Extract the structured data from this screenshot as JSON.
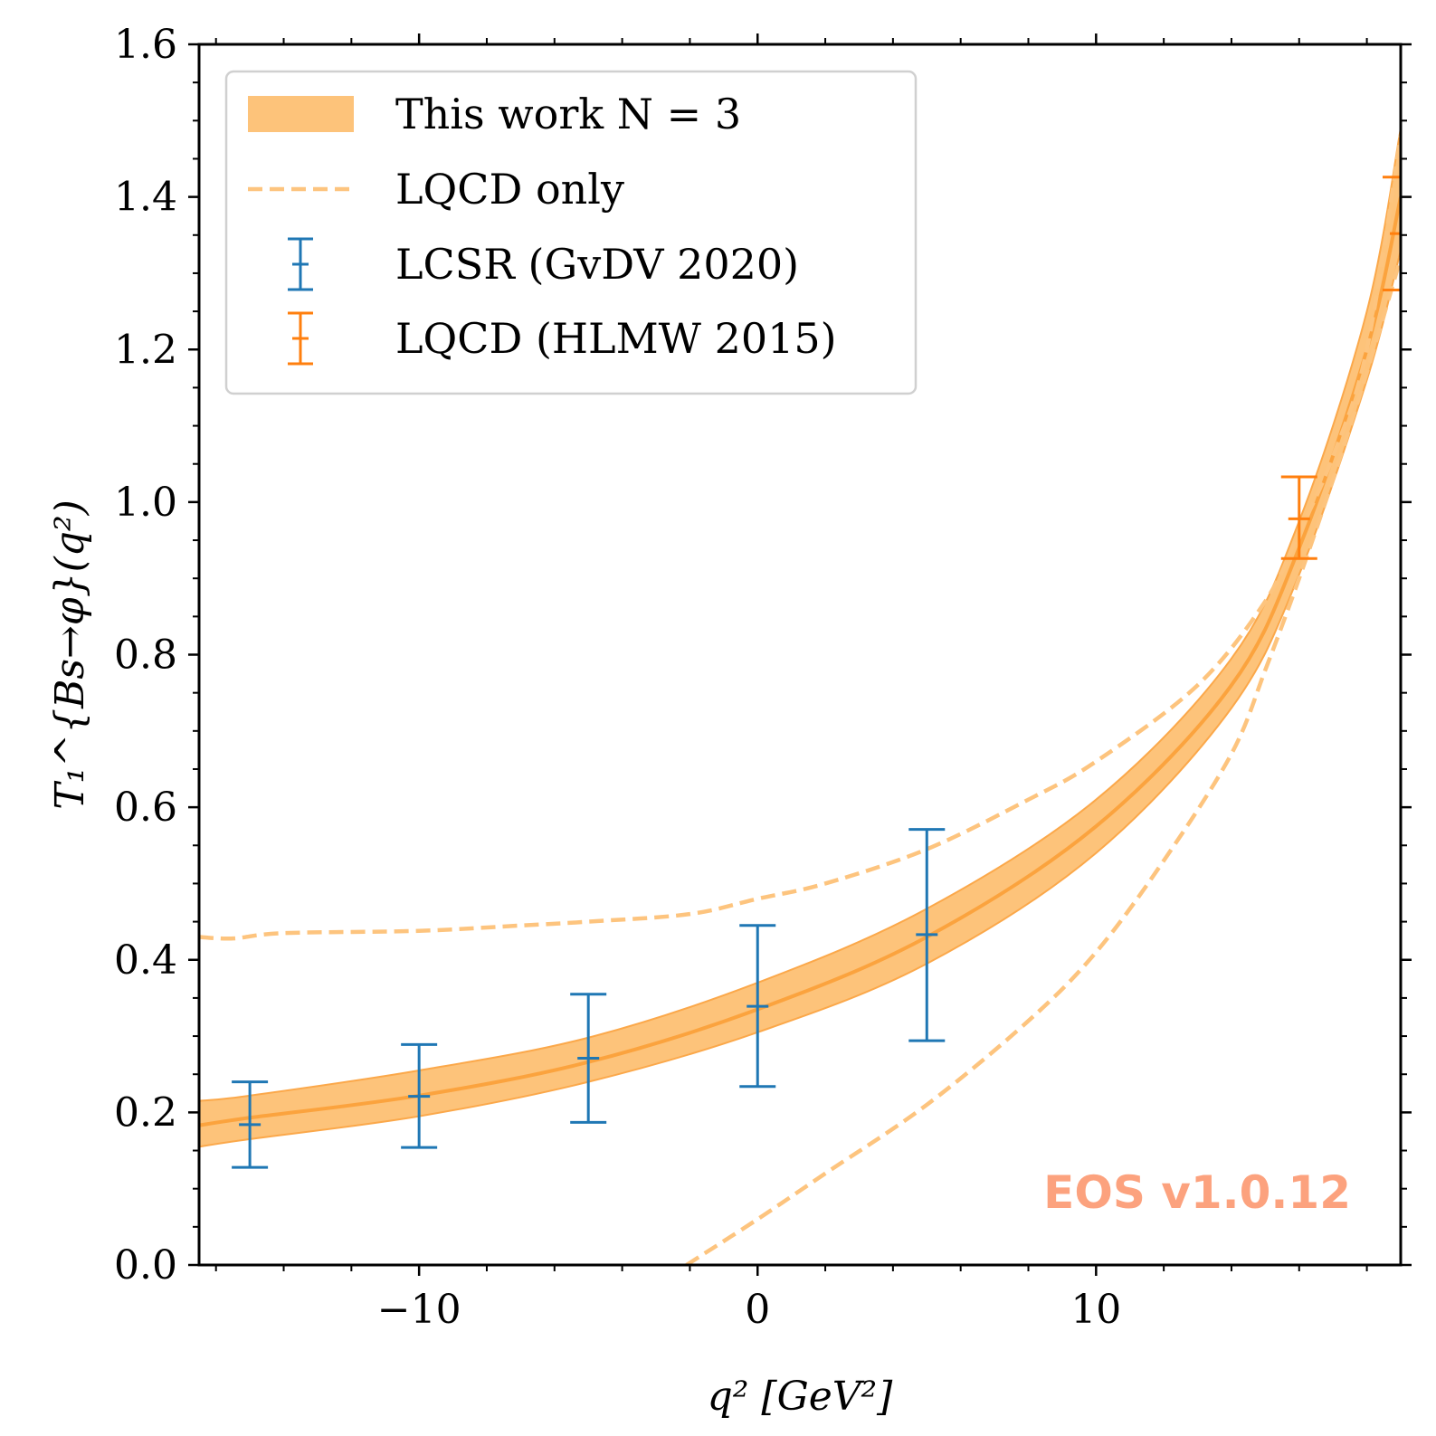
{
  "chart_data": {
    "type": "line",
    "xlabel": "q² [GeV²]",
    "ylabel": "T₁^{Bs→φ}(q²)",
    "xlim": [
      -16.5,
      19.0
    ],
    "ylim": [
      0.0,
      1.6
    ],
    "xticks": [
      -10,
      0,
      10
    ],
    "xtick_labels": [
      "−10",
      "0",
      "10"
    ],
    "yticks": [
      0.0,
      0.2,
      0.4,
      0.6,
      0.8,
      1.0,
      1.2,
      1.4,
      1.6
    ],
    "ytick_labels": [
      "0.0",
      "0.2",
      "0.4",
      "0.6",
      "0.8",
      "1.0",
      "1.2",
      "1.4",
      "1.6"
    ],
    "grid": false,
    "legend_position": "top-left",
    "legend": [
      {
        "label": "This work N = 3",
        "kind": "band",
        "color": "#fdb863"
      },
      {
        "label": "LQCD only",
        "kind": "dashed",
        "color": "#fdc47e"
      },
      {
        "label": "LCSR (GvDV 2020)",
        "kind": "errorbar",
        "color": "#1f77b4"
      },
      {
        "label": "LQCD (HLMW 2015)",
        "kind": "errorbar",
        "color": "#ff7f0e"
      }
    ],
    "band": {
      "x": [
        -16.5,
        -15,
        -10,
        -5,
        0,
        5,
        10,
        14,
        16,
        18,
        19
      ],
      "central": [
        0.183,
        0.193,
        0.222,
        0.266,
        0.335,
        0.43,
        0.575,
        0.76,
        0.94,
        1.2,
        1.4
      ],
      "lower": [
        0.155,
        0.165,
        0.195,
        0.24,
        0.305,
        0.395,
        0.54,
        0.73,
        0.905,
        1.16,
        1.33
      ],
      "upper": [
        0.215,
        0.222,
        0.255,
        0.298,
        0.37,
        0.467,
        0.61,
        0.795,
        0.975,
        1.25,
        1.49
      ]
    },
    "lqcd_only_upper": {
      "x": [
        -16.5,
        -15.5,
        -14,
        -10,
        -7,
        -5,
        -2,
        0,
        2,
        5,
        8,
        10,
        13,
        15,
        16,
        17,
        18,
        19
      ],
      "y": [
        0.43,
        0.428,
        0.435,
        0.438,
        0.445,
        0.45,
        0.46,
        0.48,
        0.5,
        0.545,
        0.61,
        0.66,
        0.76,
        0.87,
        0.96,
        1.06,
        1.2,
        1.48
      ]
    },
    "lqcd_only_lower": {
      "x": [
        -2.1,
        0,
        2,
        5,
        8,
        10,
        12,
        14,
        15,
        16,
        17,
        18,
        19
      ],
      "y": [
        0.0,
        0.06,
        0.12,
        0.21,
        0.32,
        0.41,
        0.53,
        0.67,
        0.78,
        0.9,
        1.03,
        1.17,
        1.32
      ]
    },
    "lcsr_points": {
      "x": [
        -15,
        -10,
        -5,
        0,
        5
      ],
      "y": [
        0.184,
        0.221,
        0.271,
        0.339,
        0.433
      ],
      "lower": [
        0.128,
        0.154,
        0.187,
        0.234,
        0.294
      ],
      "upper": [
        0.24,
        0.289,
        0.355,
        0.445,
        0.571
      ]
    },
    "lqcd_points": {
      "x": [
        16,
        19
      ],
      "y": [
        0.978,
        1.352
      ],
      "lower": [
        0.926,
        1.278
      ],
      "upper": [
        1.033,
        1.426
      ]
    }
  },
  "watermark": "EOS v1.0.12"
}
